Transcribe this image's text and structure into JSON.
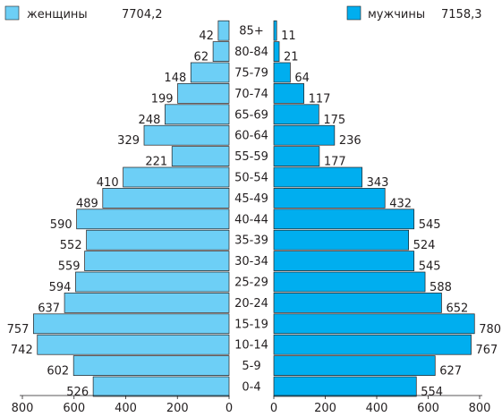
{
  "chart_data": {
    "type": "bar",
    "orientation": "horizontal",
    "layout": "population-pyramid",
    "categories": [
      "0-4",
      "5-9",
      "10-14",
      "15-19",
      "20-24",
      "25-29",
      "30-34",
      "35-39",
      "40-44",
      "45-49",
      "50-54",
      "55-59",
      "60-64",
      "65-69",
      "70-74",
      "75-79",
      "80-84",
      "85+"
    ],
    "series": [
      {
        "name": "женщины",
        "total_label": "7704,2",
        "side": "left",
        "color": "#6dcff6",
        "values": [
          526,
          602,
          742,
          757,
          637,
          594,
          559,
          552,
          590,
          489,
          410,
          221,
          329,
          248,
          199,
          148,
          62,
          42
        ]
      },
      {
        "name": "мужчины",
        "total_label": "7158,3",
        "side": "right",
        "color": "#00aeef",
        "values": [
          554,
          627,
          767,
          780,
          652,
          588,
          545,
          524,
          545,
          432,
          343,
          177,
          236,
          175,
          117,
          64,
          21,
          11
        ]
      }
    ],
    "xlim": [
      0,
      800
    ],
    "xticks": [
      800,
      600,
      400,
      200,
      0
    ],
    "xticks_right": [
      0,
      200,
      400,
      600,
      800
    ],
    "grid": false,
    "legend": "top",
    "title": "",
    "xlabel": "",
    "ylabel": ""
  }
}
